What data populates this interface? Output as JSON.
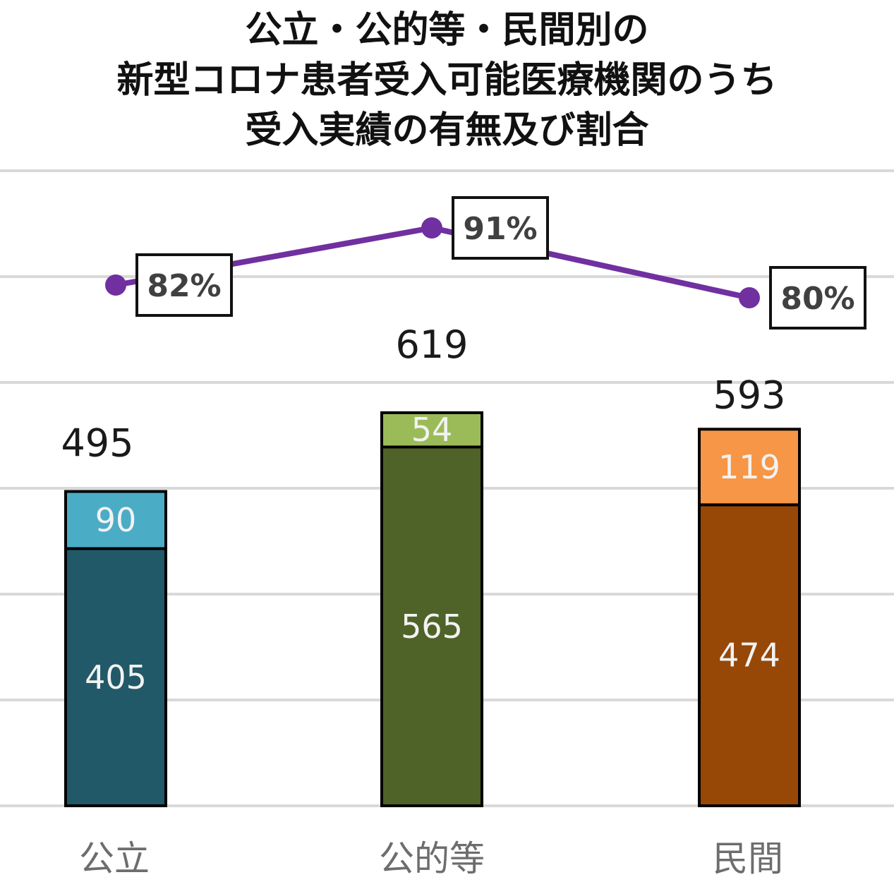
{
  "title_lines": [
    "公立・公的等・民間別の",
    "新型コロナ患者受入可能医療機関のうち",
    "受入実績の有無及び割合"
  ],
  "chart_data": {
    "type": "bar",
    "stacked": true,
    "categories": [
      "公立",
      "公的等",
      "民間"
    ],
    "totals": [
      495,
      619,
      593
    ],
    "series": [
      {
        "values": [
          405,
          565,
          474
        ],
        "colors": [
          "#215968",
          "#4f6228",
          "#974706"
        ]
      },
      {
        "values": [
          90,
          54,
          119
        ],
        "colors": [
          "#4bacc6",
          "#9bbb59",
          "#f79646"
        ]
      }
    ],
    "line_series": {
      "values": [
        0.82,
        0.91,
        0.8
      ],
      "labels": [
        "82%",
        "91%",
        "80%"
      ],
      "color": "#7030a0"
    },
    "bar_axis": {
      "min": 0,
      "max": 1000
    },
    "line_axis": {
      "min": 0,
      "max": 1.0
    },
    "grid": true,
    "legend": "none"
  }
}
